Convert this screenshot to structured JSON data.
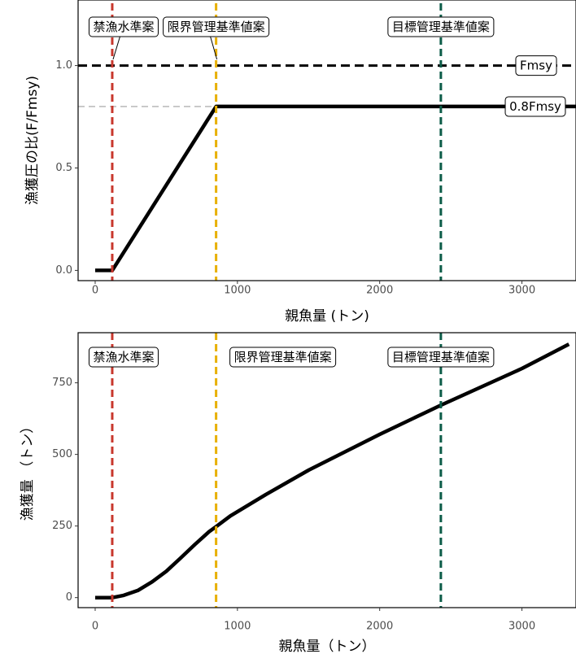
{
  "chart_data": [
    {
      "type": "line",
      "xlabel": "親魚量 (トン)",
      "ylabel": "漁獲圧の比(F/Fmsy)",
      "xlim": [
        -120,
        3380
      ],
      "ylim": [
        -0.05,
        1.32
      ],
      "x_ticks": [
        0,
        1000,
        2000,
        3000
      ],
      "y_ticks": [
        0.0,
        0.5,
        1.0
      ],
      "y_tick_labels": [
        "0.0",
        "0.5",
        "1.0"
      ],
      "grid": false,
      "series": [
        {
          "x": [
            0,
            120,
            850,
            3380
          ],
          "y": [
            0,
            0,
            0.8,
            0.8
          ],
          "color": "#000000"
        }
      ],
      "vlines": [
        {
          "label": "禁漁水準案",
          "x": 120,
          "color": "#C8372D"
        },
        {
          "label": "限界管理基準値案",
          "x": 850,
          "color": "#E8B000"
        },
        {
          "label": "目標管理基準値案",
          "x": 2430,
          "color": "#0B5C47"
        }
      ],
      "hlines": [
        {
          "label": "Fmsy",
          "y": 1.0,
          "color": "#000000",
          "style": "dashed"
        },
        {
          "label": "0.8Fmsy",
          "y": 0.8,
          "color": "#BDBDBD",
          "style": "dashed"
        }
      ]
    },
    {
      "type": "line",
      "xlabel": "親魚量（トン）",
      "ylabel": "漁獲量 （トン）",
      "xlim": [
        -120,
        3380
      ],
      "ylim": [
        -35,
        925
      ],
      "x_ticks": [
        0,
        1000,
        2000,
        3000
      ],
      "y_ticks": [
        0,
        250,
        500,
        750
      ],
      "y_tick_labels": [
        "0",
        "250",
        "500",
        "750"
      ],
      "grid": false,
      "series": [
        {
          "x": [
            0,
            120,
            200,
            300,
            400,
            500,
            600,
            700,
            800,
            850,
            950,
            1200,
            1500,
            2000,
            2430,
            3000,
            3330
          ],
          "y": [
            0,
            0,
            8,
            25,
            55,
            92,
            138,
            185,
            230,
            248,
            285,
            360,
            445,
            570,
            672,
            800,
            885
          ],
          "color": "#000000"
        }
      ],
      "vlines": [
        {
          "label": "禁漁水準案",
          "x": 120,
          "color": "#C8372D"
        },
        {
          "label": "限界管理基準値案",
          "x": 850,
          "color": "#E8B000"
        },
        {
          "label": "目標管理基準値案",
          "x": 2430,
          "color": "#0B5C47"
        }
      ]
    }
  ]
}
